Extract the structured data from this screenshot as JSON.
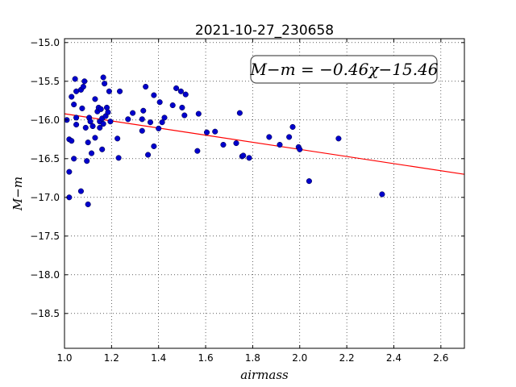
{
  "chart_data": {
    "type": "scatter",
    "title": "2021-10-27_230658",
    "xlabel": "airmass",
    "ylabel": "M−m",
    "xlim": [
      1.0,
      2.7
    ],
    "ylim": [
      -18.95,
      -14.95
    ],
    "xticks": [
      1.0,
      1.2,
      1.4,
      1.6,
      1.8,
      2.0,
      2.2,
      2.4,
      2.6
    ],
    "xtick_labels": [
      "1.0",
      "1.2",
      "1.4",
      "1.6",
      "1.8",
      "2.0",
      "2.2",
      "2.4",
      "2.6"
    ],
    "yticks": [
      -15.0,
      -15.5,
      -16.0,
      -16.5,
      -17.0,
      -17.5,
      -18.0,
      -18.5
    ],
    "ytick_labels": [
      "−15.0",
      "−15.5",
      "−16.0",
      "−16.5",
      "−17.0",
      "−17.5",
      "−18.0",
      "−18.5"
    ],
    "grid": true,
    "annotation": "M−m = −0.46χ−15.46",
    "fit": {
      "slope": -0.46,
      "intercept": -15.46,
      "color": "#ff0000"
    },
    "marker_color": "#0000cc",
    "points": [
      [
        1.01,
        -16.0
      ],
      [
        1.02,
        -17.0
      ],
      [
        1.02,
        -16.25
      ],
      [
        1.02,
        -16.67
      ],
      [
        1.03,
        -15.7
      ],
      [
        1.03,
        -16.27
      ],
      [
        1.04,
        -15.8
      ],
      [
        1.04,
        -16.5
      ],
      [
        1.045,
        -15.47
      ],
      [
        1.05,
        -15.97
      ],
      [
        1.05,
        -16.06
      ],
      [
        1.05,
        -15.63
      ],
      [
        1.07,
        -16.92
      ],
      [
        1.07,
        -15.61
      ],
      [
        1.075,
        -15.85
      ],
      [
        1.08,
        -15.57
      ],
      [
        1.085,
        -15.5
      ],
      [
        1.09,
        -16.1
      ],
      [
        1.095,
        -16.53
      ],
      [
        1.1,
        -16.29
      ],
      [
        1.1,
        -17.09
      ],
      [
        1.105,
        -15.97
      ],
      [
        1.11,
        -16.02
      ],
      [
        1.115,
        -16.43
      ],
      [
        1.12,
        -16.08
      ],
      [
        1.13,
        -15.73
      ],
      [
        1.13,
        -16.23
      ],
      [
        1.14,
        -15.89
      ],
      [
        1.145,
        -15.84
      ],
      [
        1.15,
        -16.1
      ],
      [
        1.15,
        -16.02
      ],
      [
        1.155,
        -15.86
      ],
      [
        1.16,
        -16.38
      ],
      [
        1.16,
        -15.98
      ],
      [
        1.165,
        -16.05
      ],
      [
        1.165,
        -15.45
      ],
      [
        1.17,
        -15.53
      ],
      [
        1.175,
        -15.95
      ],
      [
        1.18,
        -15.84
      ],
      [
        1.185,
        -15.9
      ],
      [
        1.19,
        -15.63
      ],
      [
        1.195,
        -16.02
      ],
      [
        1.225,
        -16.24
      ],
      [
        1.23,
        -16.49
      ],
      [
        1.235,
        -15.63
      ],
      [
        1.27,
        -15.99
      ],
      [
        1.29,
        -15.91
      ],
      [
        1.33,
        -16.14
      ],
      [
        1.33,
        -15.99
      ],
      [
        1.335,
        -15.88
      ],
      [
        1.345,
        -15.57
      ],
      [
        1.355,
        -16.45
      ],
      [
        1.365,
        -16.03
      ],
      [
        1.38,
        -16.34
      ],
      [
        1.38,
        -15.68
      ],
      [
        1.4,
        -16.11
      ],
      [
        1.405,
        -15.77
      ],
      [
        1.415,
        -16.03
      ],
      [
        1.425,
        -15.97
      ],
      [
        1.46,
        -15.81
      ],
      [
        1.475,
        -15.59
      ],
      [
        1.495,
        -15.63
      ],
      [
        1.5,
        -15.84
      ],
      [
        1.51,
        -15.94
      ],
      [
        1.515,
        -15.67
      ],
      [
        1.565,
        -16.4
      ],
      [
        1.57,
        -15.92
      ],
      [
        1.605,
        -16.16
      ],
      [
        1.64,
        -16.15
      ],
      [
        1.675,
        -16.32
      ],
      [
        1.73,
        -16.3
      ],
      [
        1.745,
        -15.91
      ],
      [
        1.755,
        -16.47
      ],
      [
        1.76,
        -16.46
      ],
      [
        1.785,
        -16.49
      ],
      [
        1.87,
        -16.22
      ],
      [
        1.915,
        -16.32
      ],
      [
        1.955,
        -16.22
      ],
      [
        1.97,
        -16.09
      ],
      [
        1.995,
        -16.35
      ],
      [
        2.0,
        -16.38
      ],
      [
        2.04,
        -16.79
      ],
      [
        2.165,
        -16.24
      ],
      [
        2.35,
        -16.96
      ]
    ]
  }
}
